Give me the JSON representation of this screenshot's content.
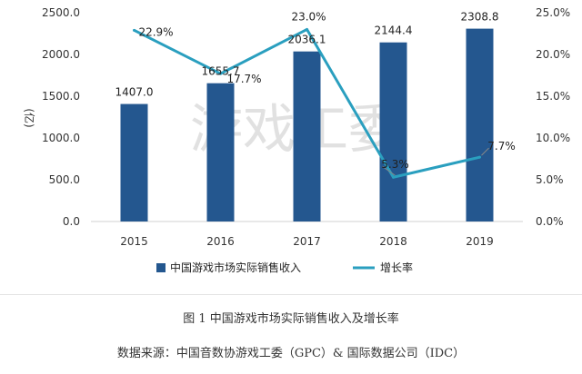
{
  "chart_data": {
    "type": "bar+line",
    "categories": [
      "2015",
      "2016",
      "2017",
      "2018",
      "2019"
    ],
    "series": [
      {
        "name": "中国游戏市场实际销售收入",
        "type": "bar",
        "axis": "left",
        "values": [
          1407.0,
          1655.7,
          2036.1,
          2144.4,
          2308.8
        ],
        "labels": [
          "1407.0",
          "1655.7",
          "2036.1",
          "2144.4",
          "2308.8"
        ]
      },
      {
        "name": "增长率",
        "type": "line",
        "axis": "right",
        "values": [
          22.9,
          17.7,
          23.0,
          5.3,
          7.7
        ],
        "labels": [
          "22.9%",
          "17.7%",
          "23.0%",
          "5.3%",
          "7.7%"
        ]
      }
    ],
    "ylabel": "(亿)",
    "ylim": [
      0,
      2500
    ],
    "yticks": [
      "0.0",
      "500.0",
      "1000.0",
      "1500.0",
      "2000.0",
      "2500.0"
    ],
    "y2lim": [
      0,
      25
    ],
    "y2ticks": [
      "0.0%",
      "5.0%",
      "10.0%",
      "15.0%",
      "20.0%",
      "25.0%"
    ],
    "grid": false,
    "legend": "bottom",
    "watermark": "游戏工委",
    "colors": {
      "bar": "#24578f",
      "line": "#2a9fbf"
    }
  },
  "caption": "图 1  中国游戏市场实际销售收入及增长率",
  "source": "数据来源：中国音数协游戏工委（GPC）& 国际数据公司（IDC）"
}
